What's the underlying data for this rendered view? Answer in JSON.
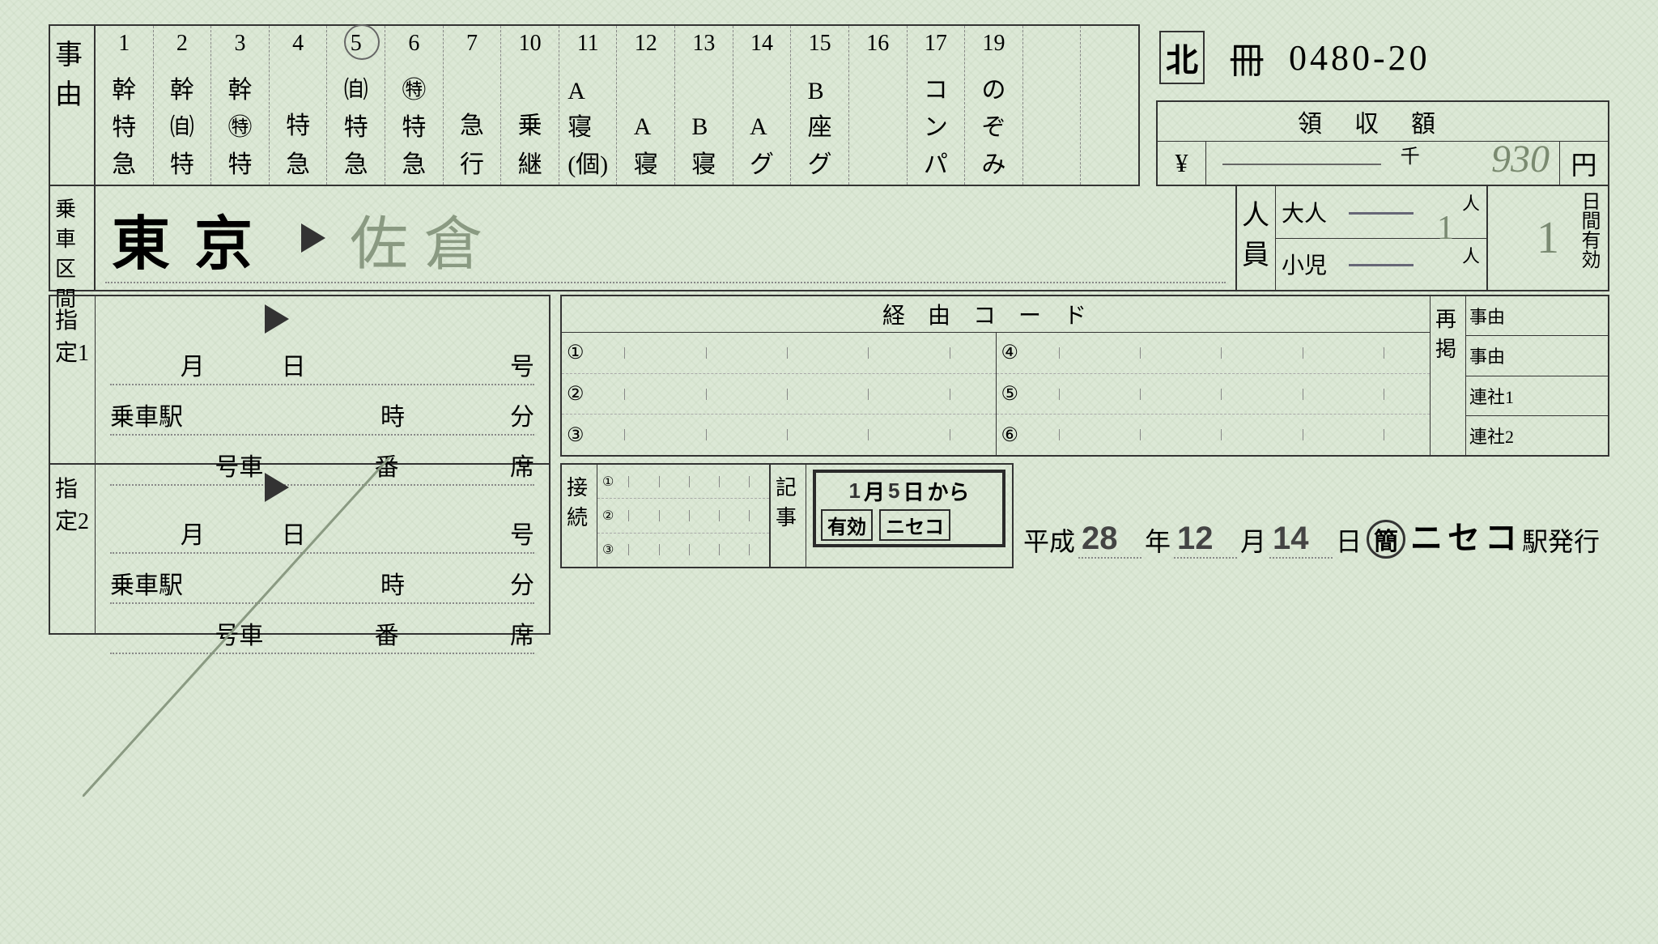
{
  "serial": {
    "region": "北",
    "book": "冊",
    "number": "0480-20"
  },
  "jiyuu": {
    "label": "事由",
    "cols": [
      {
        "n": "1",
        "t": [
          "幹",
          "特",
          "急"
        ]
      },
      {
        "n": "2",
        "t": [
          "幹",
          "㉂",
          "特"
        ]
      },
      {
        "n": "3",
        "t": [
          "幹",
          "㊕",
          "特"
        ]
      },
      {
        "n": "4",
        "t": [
          "特",
          "",
          "急"
        ]
      },
      {
        "n": "5",
        "t": [
          "㉂",
          "特",
          "急"
        ]
      },
      {
        "n": "6",
        "t": [
          "㊕",
          "特",
          "急"
        ]
      },
      {
        "n": "7",
        "t": [
          "急",
          "",
          "行"
        ]
      },
      {
        "n": "10",
        "t": [
          "乗",
          "",
          "継"
        ]
      },
      {
        "n": "11",
        "t": [
          "A",
          "寝",
          "(個)"
        ]
      },
      {
        "n": "12",
        "t": [
          "A",
          "",
          "寝"
        ]
      },
      {
        "n": "13",
        "t": [
          "B",
          "",
          "寝"
        ]
      },
      {
        "n": "14",
        "t": [
          "A",
          "",
          "グ"
        ]
      },
      {
        "n": "15",
        "t": [
          "B",
          "座",
          "グ"
        ]
      },
      {
        "n": "16",
        "t": [
          "",
          "",
          ""
        ]
      },
      {
        "n": "17",
        "t": [
          "コ",
          "ン",
          "パ"
        ]
      },
      {
        "n": "19",
        "t": [
          "の",
          "ぞ",
          "み"
        ]
      },
      {
        "n": "",
        "t": [
          "",
          "",
          ""
        ]
      },
      {
        "n": "",
        "t": [
          "",
          "",
          ""
        ]
      }
    ],
    "circled_col": "5"
  },
  "ryoushuu": {
    "header": "領収額",
    "yen": "¥",
    "sen": "千",
    "en": "円",
    "amount": "930"
  },
  "route": {
    "label": "乗車区間",
    "from": "東京",
    "to": "佐倉"
  },
  "people": {
    "label": "人員",
    "adult": "大人",
    "child": "小児",
    "unit": "人",
    "adult_val": "1"
  },
  "valid": {
    "label": "日間有効",
    "days": "1"
  },
  "shitei": {
    "label1": "指定1",
    "label2": "指定2",
    "month": "月",
    "day": "日",
    "gou": "号",
    "station": "乗車駅",
    "hour": "時",
    "min": "分",
    "car": "号車",
    "ban": "番",
    "seat": "席"
  },
  "keiyu": {
    "title": "経由コード",
    "nums": [
      "①",
      "②",
      "③",
      "④",
      "⑤",
      "⑥"
    ],
    "saikei_label": "再掲",
    "saikei_rows": [
      "事由",
      "事由",
      "連社1",
      "連社2"
    ]
  },
  "setsuzoku": {
    "label": "接続",
    "nums": [
      "①",
      "②",
      "③"
    ]
  },
  "kiji": {
    "label": "記事",
    "stamp": {
      "month": "1",
      "day": "5",
      "m": "月",
      "d": "日",
      "kara": "から",
      "yuukou": "有効",
      "niseko": "ニセコ"
    }
  },
  "issue": {
    "era": "平成",
    "year_val": "28",
    "month_val": "12",
    "day_val": "14",
    "year": "年",
    "month": "月",
    "day": "日",
    "kan": "簡",
    "station": "ニセコ",
    "suffix": "駅発行"
  }
}
